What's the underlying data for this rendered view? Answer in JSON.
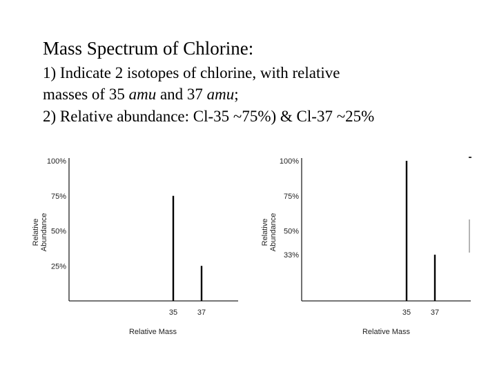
{
  "header": {
    "title": "Mass Spectrum of Chlorine:",
    "point1_a": "1) Indicate 2 isotopes of chlorine, with relative",
    "point1_b_pre": "masses of 35 ",
    "point1_b_unit1": "amu",
    "point1_b_mid": " and 37 ",
    "point1_b_unit2": "amu",
    "point1_b_post": ";",
    "point2": "2) Relative abundance: Cl-35 ~75%) & Cl-37 ~25%"
  },
  "chart_data": [
    {
      "type": "bar",
      "xlabel": "Relative Mass",
      "ylabel": "Relative Abundance",
      "y_ticks": [
        "100%",
        "75%",
        "50%",
        "25%"
      ],
      "y_tick_values": [
        100,
        75,
        50,
        25
      ],
      "categories": [
        "35",
        "37"
      ],
      "values": [
        75,
        25
      ],
      "ylim": [
        0,
        100
      ]
    },
    {
      "type": "bar",
      "xlabel": "Relative Mass",
      "ylabel": "Relative Abundance",
      "y_ticks": [
        "100%",
        "75%",
        "50%",
        "33%"
      ],
      "y_tick_values": [
        100,
        75,
        50,
        33
      ],
      "categories": [
        "35",
        "37"
      ],
      "values": [
        100,
        33
      ],
      "ylim": [
        0,
        100
      ]
    }
  ],
  "colors": {
    "bar": "#000000",
    "axis": "#222222"
  }
}
